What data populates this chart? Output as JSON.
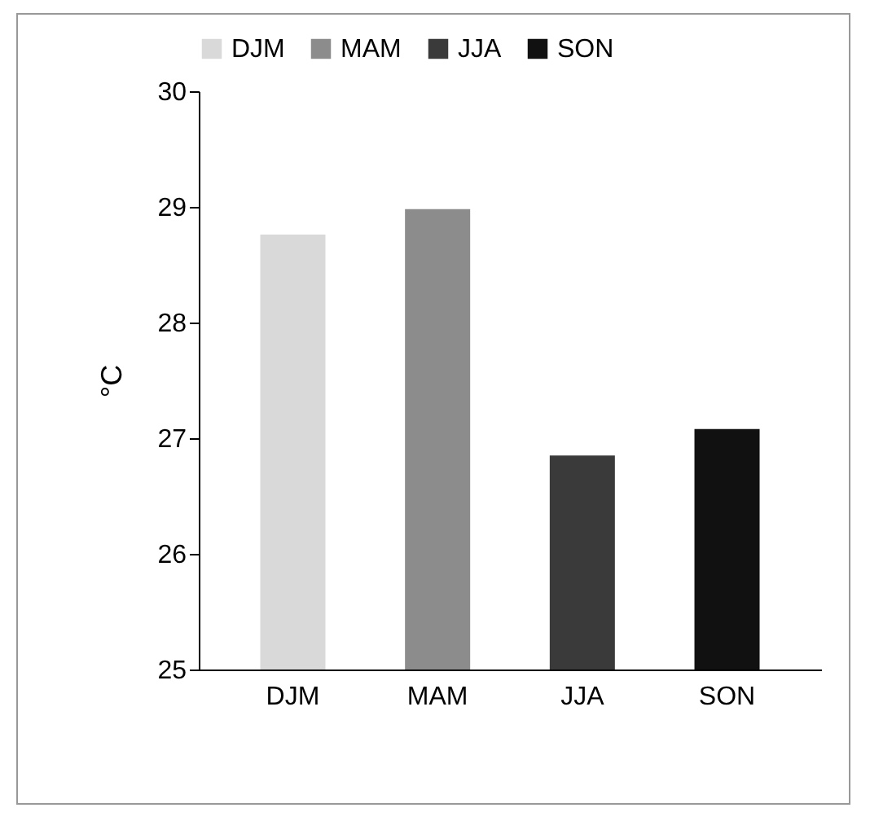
{
  "chart_data": {
    "type": "bar",
    "categories": [
      "DJM",
      "MAM",
      "JJA",
      "SON"
    ],
    "series": [
      {
        "name": "DJM",
        "color": "#d9d9d9",
        "values": [
          28.76,
          null,
          null,
          null
        ]
      },
      {
        "name": "MAM",
        "color": "#8c8c8c",
        "values": [
          null,
          28.98,
          null,
          null
        ]
      },
      {
        "name": "JJA",
        "color": "#3a3a3a",
        "values": [
          null,
          null,
          26.85,
          null
        ]
      },
      {
        "name": "SON",
        "color": "#111111",
        "values": [
          null,
          null,
          null,
          27.08
        ]
      }
    ],
    "ylabel": "°C",
    "ylim": [
      25,
      30
    ],
    "yticks": [
      25,
      26,
      27,
      28,
      29,
      30
    ],
    "grid": false,
    "legend": "top"
  }
}
